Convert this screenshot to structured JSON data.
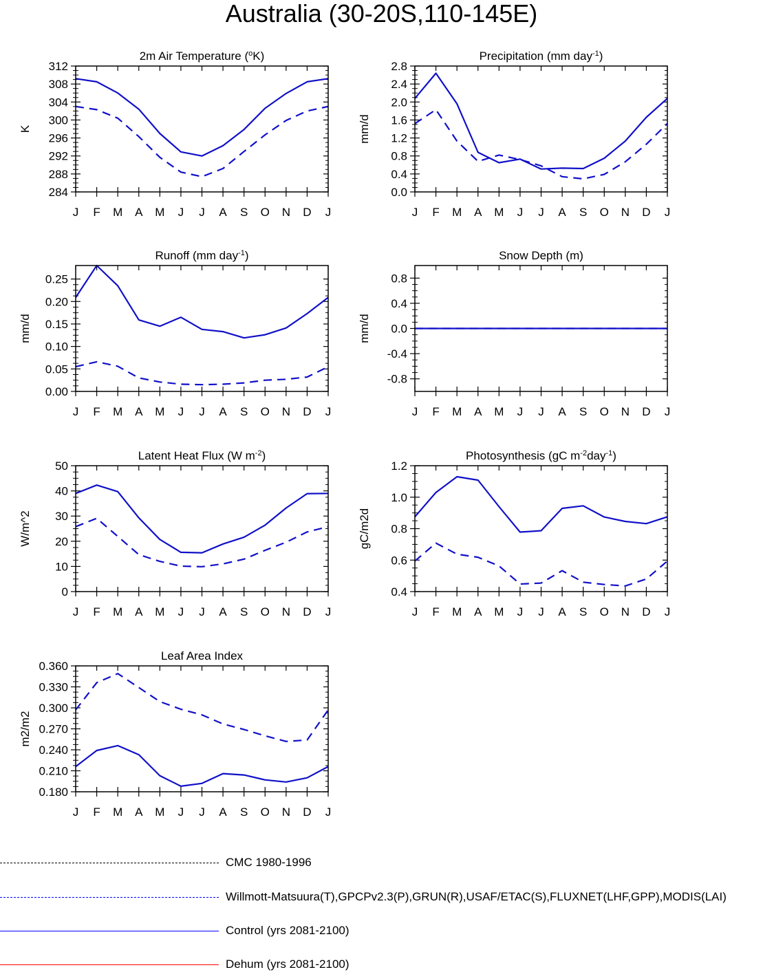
{
  "title": "Australia (30-20S,110-145E)",
  "months": [
    "J",
    "F",
    "M",
    "A",
    "M",
    "J",
    "J",
    "A",
    "S",
    "O",
    "N",
    "D",
    "J"
  ],
  "chart_data": [
    {
      "type": "line",
      "title": "2m Air Temperature (°K)",
      "title_parts": [
        {
          "t": "2m Air Temperature ("
        },
        {
          "t": "o",
          "sup": true
        },
        {
          "t": "K)"
        }
      ],
      "ylabel": "K",
      "ylim": [
        284,
        312
      ],
      "yticks": [
        "284",
        "288",
        "292",
        "296",
        "300",
        "304",
        "308",
        "312"
      ],
      "series": [
        {
          "name": "Control (yrs 2081-2100)",
          "style": "solid",
          "values": [
            309.2,
            308.5,
            306.0,
            302.4,
            297.0,
            292.9,
            292.0,
            294.3,
            297.9,
            302.6,
            305.9,
            308.5,
            309.2
          ]
        },
        {
          "name": "Willmott-Matsuura(T)",
          "style": "dashed",
          "values": [
            303.0,
            302.3,
            300.4,
            296.3,
            291.7,
            288.4,
            287.4,
            289.2,
            293.0,
            296.7,
            299.9,
            302.0,
            303.0
          ]
        }
      ]
    },
    {
      "type": "line",
      "title": "Precipitation (mm day-1)",
      "title_parts": [
        {
          "t": "Precipitation (mm day"
        },
        {
          "t": "-1",
          "sup": true
        },
        {
          "t": ")"
        }
      ],
      "ylabel": "mm/d",
      "ylim": [
        0.0,
        2.8
      ],
      "yticks": [
        "0.0",
        "0.4",
        "0.8",
        "1.2",
        "1.6",
        "2.0",
        "2.4",
        "2.8"
      ],
      "series": [
        {
          "name": "Control (yrs 2081-2100)",
          "style": "solid",
          "values": [
            2.08,
            2.64,
            1.96,
            0.88,
            0.65,
            0.73,
            0.51,
            0.53,
            0.52,
            0.75,
            1.13,
            1.66,
            2.08
          ]
        },
        {
          "name": "GPCPv2.3(P)",
          "style": "dashed",
          "values": [
            1.52,
            1.83,
            1.13,
            0.68,
            0.82,
            0.72,
            0.58,
            0.34,
            0.29,
            0.39,
            0.67,
            1.06,
            1.52
          ]
        }
      ]
    },
    {
      "type": "line",
      "title": "Runoff (mm day-1)",
      "title_parts": [
        {
          "t": "Runoff (mm day"
        },
        {
          "t": "-1",
          "sup": true
        },
        {
          "t": ")"
        }
      ],
      "ylabel": "mm/d",
      "ylim": [
        0.0,
        0.28
      ],
      "yticks": [
        "0.00",
        "0.05",
        "0.10",
        "0.15",
        "0.20",
        "0.25"
      ],
      "ytick_values": [
        0.0,
        0.05,
        0.1,
        0.15,
        0.2,
        0.25
      ],
      "series": [
        {
          "name": "Control (yrs 2081-2100)",
          "style": "solid",
          "values": [
            0.209,
            0.28,
            0.235,
            0.159,
            0.145,
            0.165,
            0.138,
            0.133,
            0.119,
            0.126,
            0.141,
            0.173,
            0.209
          ]
        },
        {
          "name": "GRUN(R)",
          "style": "dashed",
          "values": [
            0.055,
            0.066,
            0.056,
            0.03,
            0.021,
            0.016,
            0.015,
            0.016,
            0.019,
            0.025,
            0.027,
            0.032,
            0.055
          ]
        }
      ]
    },
    {
      "type": "line",
      "title": "Snow Depth (m)",
      "title_parts": [
        {
          "t": "Snow Depth (m)"
        }
      ],
      "ylabel": "mm/d",
      "ylim": [
        -1.0,
        1.0
      ],
      "yticks": [
        "-0.8",
        "-0.4",
        "0.0",
        "0.4",
        "0.8"
      ],
      "ytick_values": [
        -0.8,
        -0.4,
        0.0,
        0.4,
        0.8
      ],
      "series": [
        {
          "name": "Control (yrs 2081-2100)",
          "style": "solid",
          "values": [
            0,
            0,
            0,
            0,
            0,
            0,
            0,
            0,
            0,
            0,
            0,
            0,
            0
          ]
        },
        {
          "name": "USAF/ETAC(S)",
          "style": "dashed",
          "values": [
            0,
            0,
            0,
            0,
            0,
            0,
            0,
            0,
            0,
            0,
            0,
            0,
            0
          ]
        }
      ]
    },
    {
      "type": "line",
      "title": "Latent Heat Flux (W m-2)",
      "title_parts": [
        {
          "t": "Latent Heat Flux (W m"
        },
        {
          "t": "-2",
          "sup": true
        },
        {
          "t": ")"
        }
      ],
      "ylabel": "W/m^2",
      "ylim": [
        0,
        50
      ],
      "yticks": [
        "0",
        "10",
        "20",
        "30",
        "40",
        "50"
      ],
      "series": [
        {
          "name": "Control (yrs 2081-2100)",
          "style": "solid",
          "values": [
            39.0,
            42.3,
            39.7,
            29.3,
            20.7,
            15.6,
            15.4,
            18.9,
            21.6,
            26.4,
            33.2,
            38.9,
            39.0
          ]
        },
        {
          "name": "FLUXNET(LHF)",
          "style": "dashed",
          "values": [
            25.8,
            29.1,
            21.9,
            14.7,
            12.0,
            10.1,
            9.9,
            11.0,
            12.9,
            16.4,
            19.6,
            23.7,
            25.8
          ]
        }
      ]
    },
    {
      "type": "line",
      "title": "Photosynthesis (gC m-2day-1)",
      "title_parts": [
        {
          "t": "Photosynthesis (gC m"
        },
        {
          "t": "-2",
          "sup": true
        },
        {
          "t": "day"
        },
        {
          "t": "-1",
          "sup": true
        },
        {
          "t": ")"
        }
      ],
      "ylabel": "gC/m2d",
      "ylim": [
        0.4,
        1.2
      ],
      "yticks": [
        "0.4",
        "0.6",
        "0.8",
        "1.0",
        "1.2"
      ],
      "series": [
        {
          "name": "Control (yrs 2081-2100)",
          "style": "solid",
          "values": [
            0.875,
            1.03,
            1.13,
            1.108,
            0.94,
            0.778,
            0.787,
            0.929,
            0.945,
            0.874,
            0.846,
            0.832,
            0.875
          ]
        },
        {
          "name": "FLUXNET(GPP)",
          "style": "dashed",
          "values": [
            0.594,
            0.708,
            0.638,
            0.618,
            0.563,
            0.448,
            0.454,
            0.533,
            0.46,
            0.445,
            0.436,
            0.48,
            0.594
          ]
        }
      ]
    },
    {
      "type": "line",
      "title": "Leaf Area Index",
      "title_parts": [
        {
          "t": "Leaf Area Index"
        }
      ],
      "ylabel": "m2/m2",
      "ylim": [
        0.18,
        0.36
      ],
      "yticks": [
        "0.180",
        "0.210",
        "0.240",
        "0.270",
        "0.300",
        "0.330",
        "0.360"
      ],
      "series": [
        {
          "name": "Control (yrs 2081-2100)",
          "style": "solid",
          "values": [
            0.216,
            0.239,
            0.246,
            0.233,
            0.203,
            0.188,
            0.192,
            0.206,
            0.204,
            0.197,
            0.194,
            0.2,
            0.216
          ]
        },
        {
          "name": "MODIS(LAI)",
          "style": "dashed",
          "values": [
            0.297,
            0.336,
            0.349,
            0.329,
            0.309,
            0.298,
            0.29,
            0.277,
            0.269,
            0.26,
            0.252,
            0.254,
            0.297
          ]
        }
      ]
    }
  ],
  "legend": [
    {
      "label": "CMC 1980-1996",
      "color": "#000000",
      "style": "dashed"
    },
    {
      "label": "Willmott-Matsuura(T),GPCPv2.3(P),GRUN(R),USAF/ETAC(S),FLUXNET(LHF,GPP),MODIS(LAI)",
      "color": "#0000ff",
      "style": "dashed"
    },
    {
      "label": "Control (yrs 2081-2100)",
      "color": "#0000ff",
      "style": "solid"
    },
    {
      "label": "Dehum (yrs 2081-2100)",
      "color": "#ff0000",
      "style": "solid"
    }
  ],
  "colors": {
    "control": "#1010c8",
    "observed": "#1010c8"
  }
}
